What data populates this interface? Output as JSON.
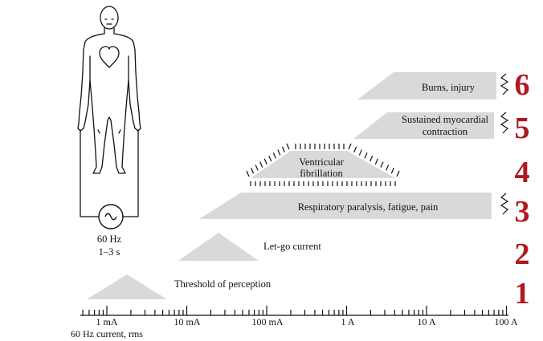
{
  "source": {
    "frequency": "60 Hz",
    "duration": "1–3 s"
  },
  "axis": {
    "title": "60 Hz current, rms",
    "ticks": [
      "1 mA",
      "10 mA",
      "100 mA",
      "1 A",
      "10 A",
      "100 A"
    ]
  },
  "effects": [
    {
      "number": "1",
      "label": "Threshold of perception"
    },
    {
      "number": "2",
      "label": "Let-go current"
    },
    {
      "number": "3",
      "label": "Respiratory paralysis, fatigue, pain"
    },
    {
      "number": "4",
      "label_line1": "Ventricular",
      "label_line2": "fibrillation"
    },
    {
      "number": "5",
      "label_line1": "Sustained myocardial",
      "label_line2": "contraction"
    },
    {
      "number": "6",
      "label": "Burns, injury"
    }
  ],
  "colors": {
    "band": "#d9d9d9",
    "stage_number": "#b0191e"
  }
}
